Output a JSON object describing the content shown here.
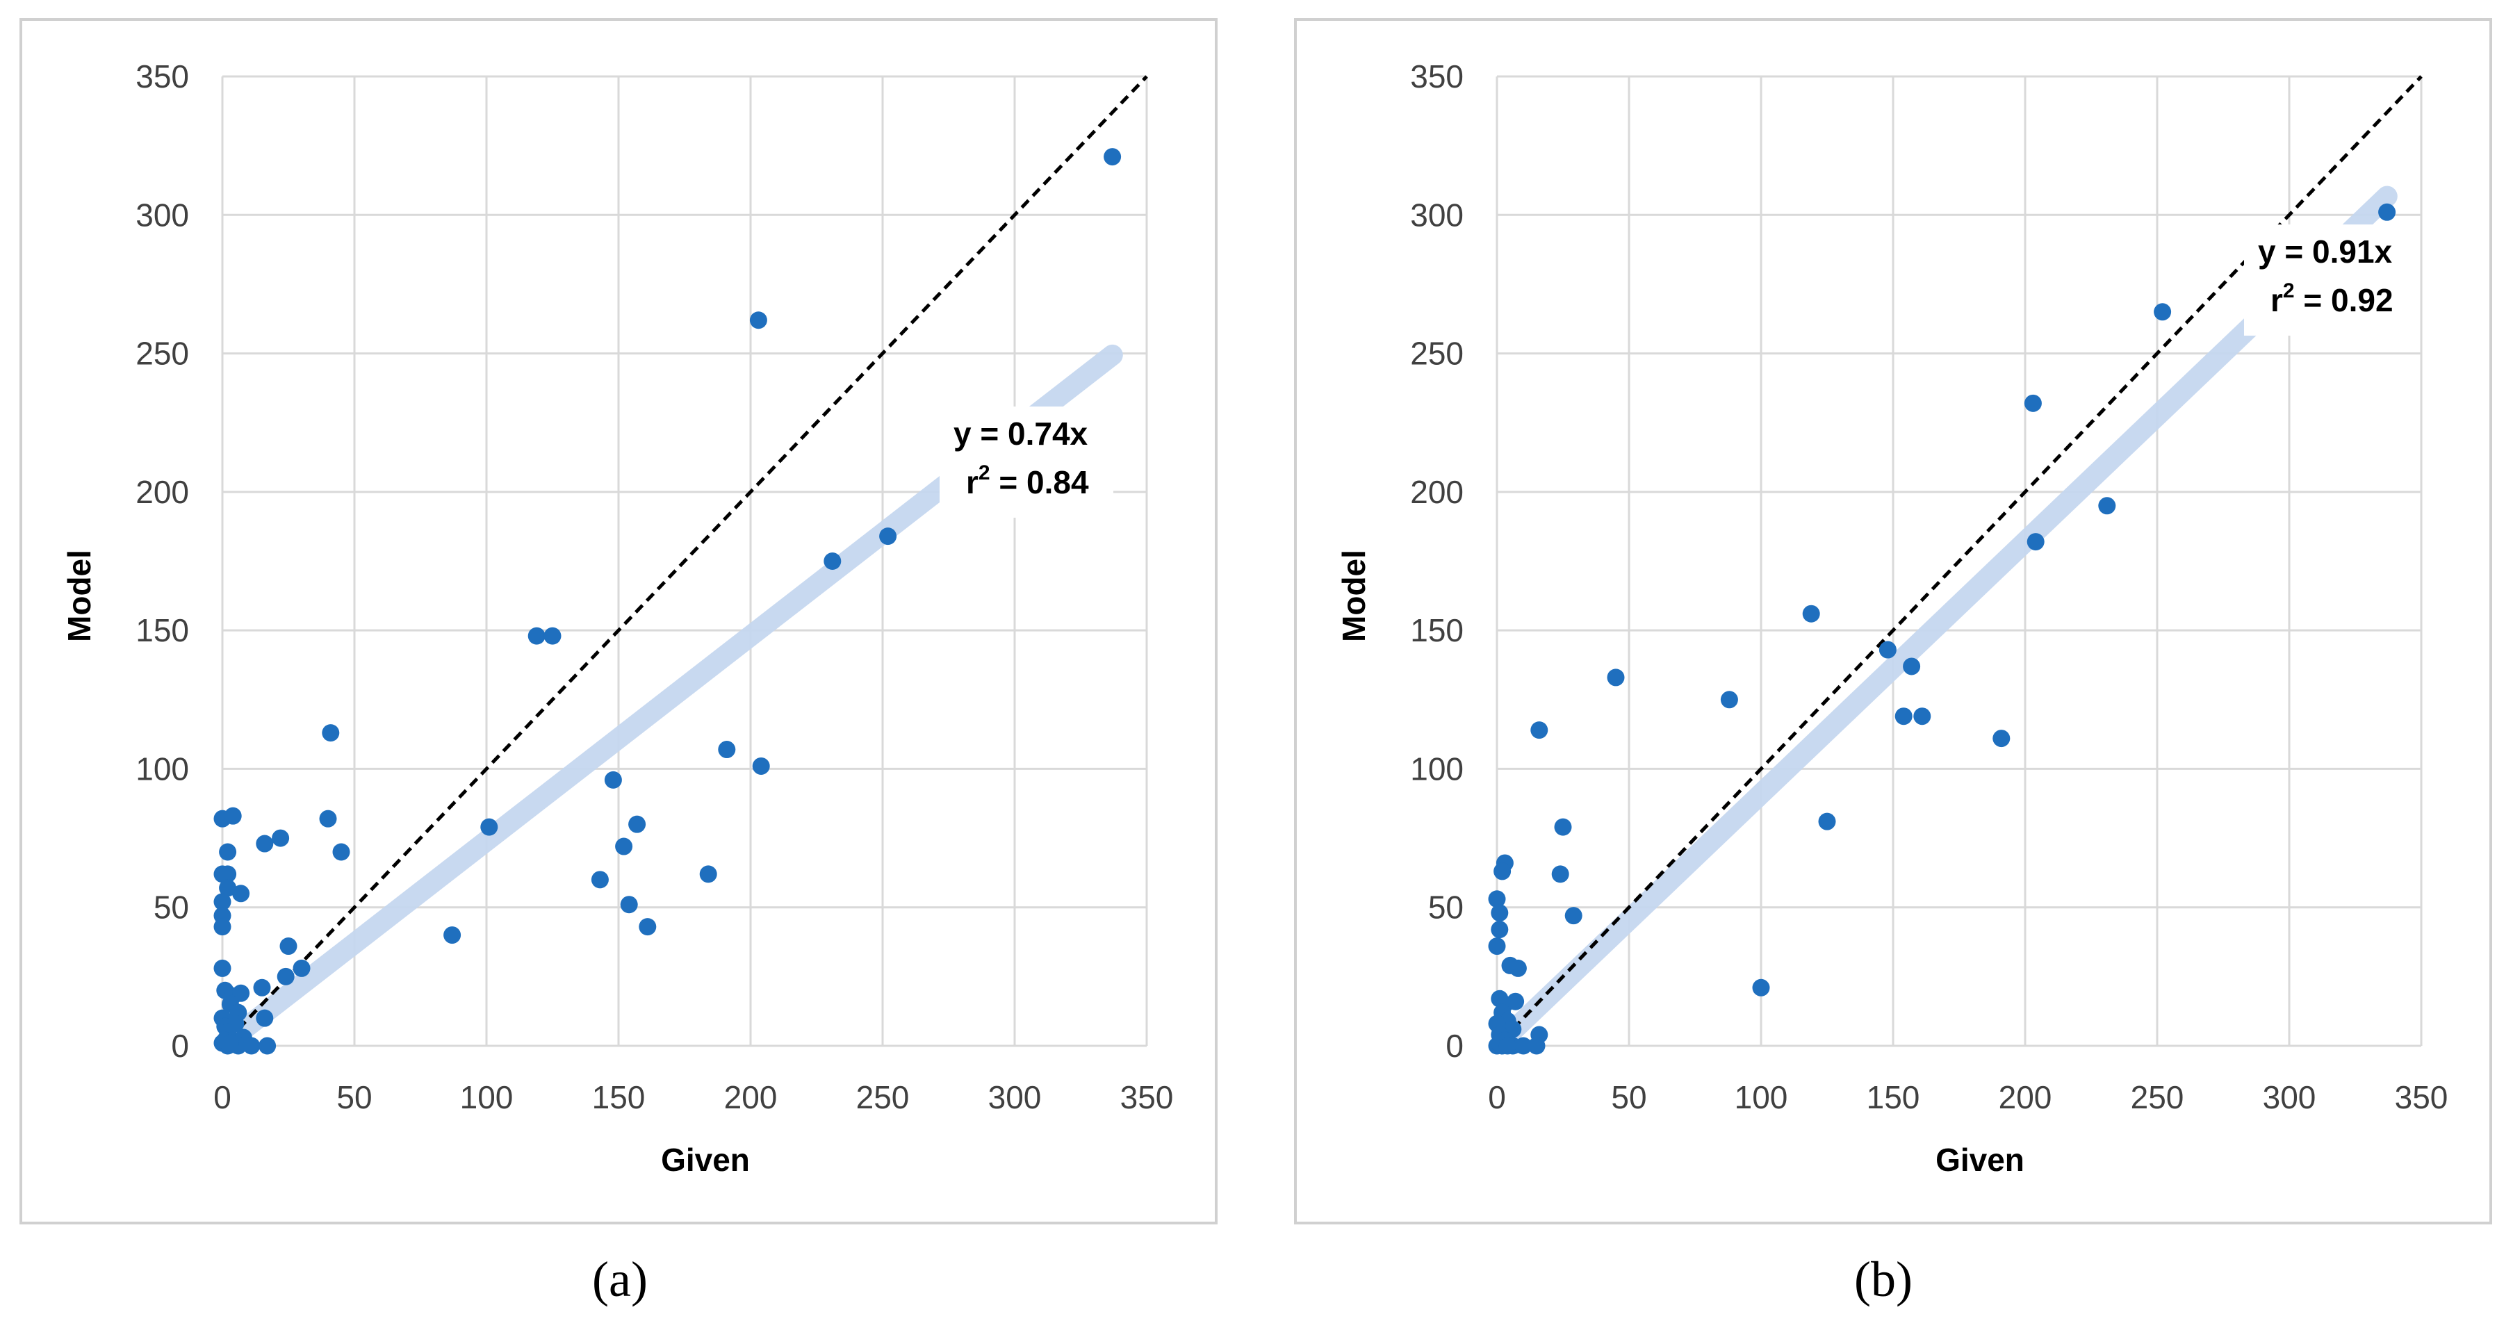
{
  "chart_data": [
    {
      "type": "scatter",
      "panel_label": "a",
      "caption": "(a)",
      "xlabel": "Given",
      "ylabel": "Model",
      "xlim": [
        0,
        350
      ],
      "ylim": [
        0,
        350
      ],
      "x_ticks": [
        "0",
        "50",
        "100",
        "150",
        "200",
        "250",
        "300",
        "350"
      ],
      "y_ticks": [
        "0",
        "50",
        "100",
        "150",
        "200",
        "250",
        "300",
        "350"
      ],
      "grid": true,
      "identity_line": {
        "style": "dashed",
        "slope": 1
      },
      "trendline": {
        "slope": 0.74,
        "style": "thick-light-blue"
      },
      "equation": "y = 0.74x",
      "r2_prefix": "r",
      "r2_sup": "2",
      "r2_value": " = 0.84",
      "points": [
        [
          337,
          321
        ],
        [
          203,
          262
        ],
        [
          252,
          184
        ],
        [
          231,
          175
        ],
        [
          119,
          148
        ],
        [
          125,
          148
        ],
        [
          41,
          113
        ],
        [
          191,
          107
        ],
        [
          204,
          101
        ],
        [
          148,
          96
        ],
        [
          101,
          79
        ],
        [
          157,
          80
        ],
        [
          40,
          82
        ],
        [
          0,
          82
        ],
        [
          4,
          83
        ],
        [
          45,
          70
        ],
        [
          152,
          72
        ],
        [
          22,
          75
        ],
        [
          16,
          73
        ],
        [
          2,
          70
        ],
        [
          184,
          62
        ],
        [
          143,
          60
        ],
        [
          154,
          51
        ],
        [
          161,
          43
        ],
        [
          87,
          40
        ],
        [
          0,
          62
        ],
        [
          2,
          62
        ],
        [
          2,
          57
        ],
        [
          7,
          55
        ],
        [
          0,
          52
        ],
        [
          0,
          47
        ],
        [
          0,
          43
        ],
        [
          25,
          36
        ],
        [
          30,
          28
        ],
        [
          24,
          25
        ],
        [
          0,
          28
        ],
        [
          15,
          21
        ],
        [
          1,
          20
        ],
        [
          4,
          18
        ],
        [
          7,
          19
        ],
        [
          3,
          15
        ],
        [
          6,
          12
        ],
        [
          0,
          10
        ],
        [
          1,
          7
        ],
        [
          5,
          8
        ],
        [
          2,
          5
        ],
        [
          8,
          3
        ],
        [
          16,
          10
        ],
        [
          0,
          1
        ],
        [
          2,
          0
        ],
        [
          6,
          0
        ],
        [
          11,
          0
        ],
        [
          17,
          0
        ],
        [
          1,
          2
        ],
        [
          3,
          1
        ]
      ]
    },
    {
      "type": "scatter",
      "panel_label": "b",
      "caption": "(b)",
      "xlabel": "Given",
      "ylabel": "Model",
      "xlim": [
        0,
        350
      ],
      "ylim": [
        0,
        350
      ],
      "x_ticks": [
        "0",
        "50",
        "100",
        "150",
        "200",
        "250",
        "300",
        "350"
      ],
      "y_ticks": [
        "0",
        "50",
        "100",
        "150",
        "200",
        "250",
        "300",
        "350"
      ],
      "grid": true,
      "identity_line": {
        "style": "dashed",
        "slope": 1
      },
      "trendline": {
        "slope": 0.91,
        "style": "thick-light-blue"
      },
      "equation": "y = 0.91x",
      "r2_prefix": "r",
      "r2_sup": "2",
      "r2_value": " = 0.92",
      "points": [
        [
          337,
          301
        ],
        [
          252,
          265
        ],
        [
          203,
          232
        ],
        [
          204,
          182
        ],
        [
          231,
          195
        ],
        [
          119,
          156
        ],
        [
          148,
          143
        ],
        [
          157,
          137
        ],
        [
          154,
          119
        ],
        [
          161,
          119
        ],
        [
          191,
          111
        ],
        [
          45,
          133
        ],
        [
          88,
          125
        ],
        [
          16,
          114
        ],
        [
          125,
          81
        ],
        [
          100,
          21
        ],
        [
          25,
          79
        ],
        [
          24,
          62
        ],
        [
          29,
          47
        ],
        [
          3,
          66
        ],
        [
          2,
          63
        ],
        [
          0,
          53
        ],
        [
          1,
          48
        ],
        [
          1,
          42
        ],
        [
          0,
          36
        ],
        [
          5,
          29
        ],
        [
          8,
          28
        ],
        [
          1,
          17
        ],
        [
          3,
          15
        ],
        [
          7,
          16
        ],
        [
          2,
          12
        ],
        [
          4,
          9
        ],
        [
          0,
          8
        ],
        [
          6,
          6
        ],
        [
          1,
          4
        ],
        [
          16,
          4
        ],
        [
          3,
          2
        ],
        [
          0,
          0
        ],
        [
          2,
          0
        ],
        [
          6,
          0
        ],
        [
          10,
          0
        ],
        [
          15,
          0
        ],
        [
          1,
          1
        ],
        [
          4,
          0
        ]
      ]
    }
  ]
}
